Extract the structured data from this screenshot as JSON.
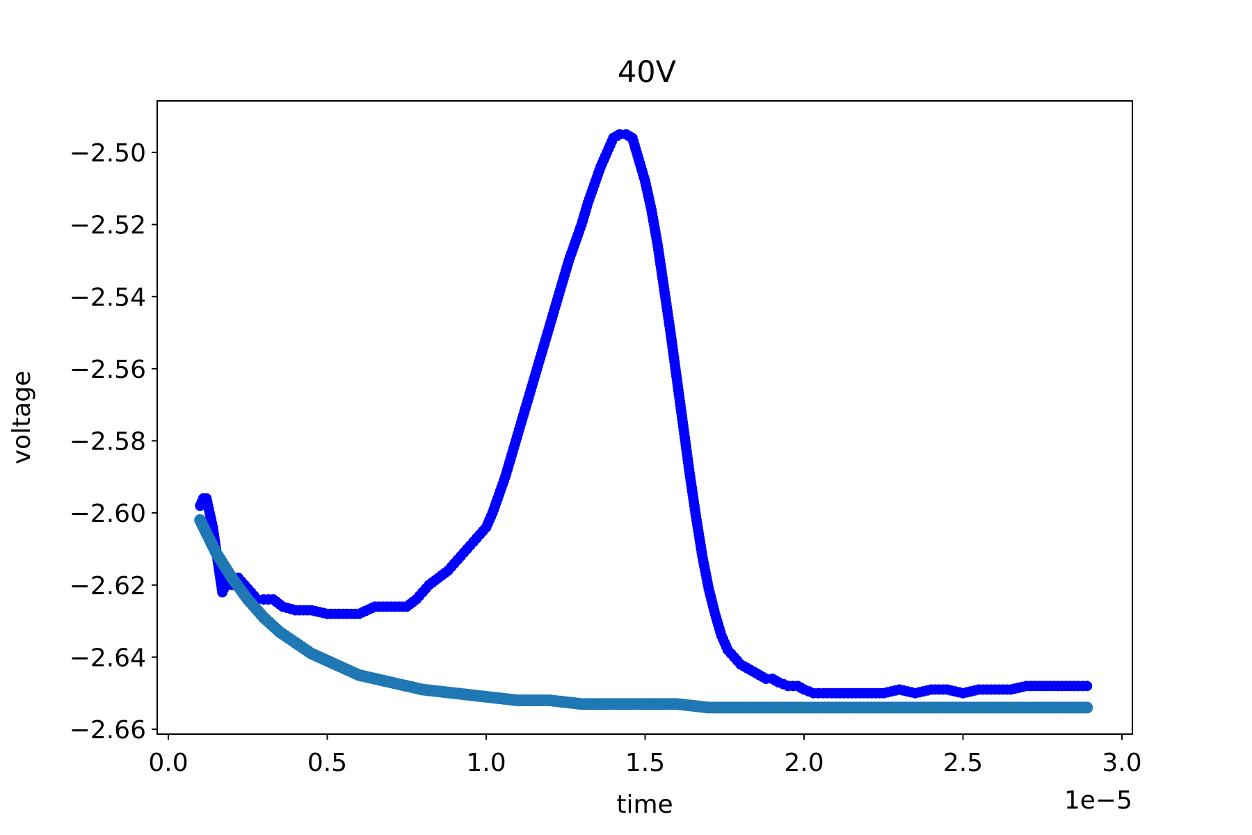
{
  "chart_data": {
    "type": "scatter",
    "title": "40V",
    "xlabel": "time",
    "ylabel": "voltage",
    "x_offset_label": "1e−5",
    "xlim": [
      -5e-08,
      3.05e-06
    ],
    "ylim": [
      -2.6618,
      -2.4865
    ],
    "xticks": [
      0.0,
      0.5,
      1.0,
      1.5,
      2.0,
      2.5,
      3.0
    ],
    "xtick_labels": [
      "0.0",
      "0.5",
      "1.0",
      "1.5",
      "2.0",
      "2.5",
      "3.0"
    ],
    "yticks": [
      -2.66,
      -2.64,
      -2.62,
      -2.6,
      -2.58,
      -2.56,
      -2.54,
      -2.52,
      -2.5
    ],
    "ytick_labels": [
      "−2.66",
      "−2.64",
      "−2.62",
      "−2.60",
      "−2.58",
      "−2.56",
      "−2.54",
      "−2.52",
      "−2.50"
    ],
    "grid": false,
    "series": [
      {
        "name": "",
        "color": "#0000ff",
        "x": [
          0.1,
          0.11,
          0.12,
          0.13,
          0.14,
          0.15,
          0.16,
          0.17,
          0.18,
          0.19,
          0.2,
          0.22,
          0.24,
          0.26,
          0.28,
          0.3,
          0.33,
          0.36,
          0.4,
          0.45,
          0.5,
          0.55,
          0.6,
          0.65,
          0.7,
          0.75,
          0.78,
          0.8,
          0.82,
          0.85,
          0.88,
          0.9,
          0.92,
          0.94,
          0.96,
          0.98,
          1.0,
          1.02,
          1.04,
          1.06,
          1.08,
          1.1,
          1.12,
          1.14,
          1.16,
          1.18,
          1.2,
          1.22,
          1.24,
          1.26,
          1.28,
          1.3,
          1.32,
          1.34,
          1.36,
          1.38,
          1.4,
          1.42,
          1.44,
          1.46,
          1.48,
          1.5,
          1.52,
          1.54,
          1.56,
          1.58,
          1.6,
          1.62,
          1.64,
          1.66,
          1.68,
          1.7,
          1.72,
          1.74,
          1.76,
          1.78,
          1.8,
          1.82,
          1.84,
          1.86,
          1.88,
          1.9,
          1.92,
          1.95,
          1.98,
          2.0,
          2.03,
          2.06,
          2.1,
          2.15,
          2.2,
          2.25,
          2.3,
          2.35,
          2.4,
          2.45,
          2.5,
          2.55,
          2.6,
          2.65,
          2.7,
          2.75,
          2.8,
          2.85,
          2.89
        ],
        "y": [
          -2.598,
          -2.596,
          -2.596,
          -2.6,
          -2.604,
          -2.61,
          -2.616,
          -2.622,
          -2.62,
          -2.618,
          -2.62,
          -2.618,
          -2.62,
          -2.622,
          -2.624,
          -2.624,
          -2.624,
          -2.626,
          -2.627,
          -2.627,
          -2.628,
          -2.628,
          -2.628,
          -2.626,
          -2.626,
          -2.626,
          -2.624,
          -2.622,
          -2.62,
          -2.618,
          -2.616,
          -2.614,
          -2.612,
          -2.61,
          -2.608,
          -2.606,
          -2.604,
          -2.6,
          -2.595,
          -2.59,
          -2.584,
          -2.578,
          -2.572,
          -2.566,
          -2.56,
          -2.554,
          -2.548,
          -2.542,
          -2.536,
          -2.53,
          -2.525,
          -2.52,
          -2.514,
          -2.509,
          -2.504,
          -2.5,
          -2.496,
          -2.495,
          -2.495,
          -2.496,
          -2.502,
          -2.508,
          -2.516,
          -2.526,
          -2.538,
          -2.55,
          -2.563,
          -2.576,
          -2.589,
          -2.601,
          -2.612,
          -2.621,
          -2.628,
          -2.634,
          -2.638,
          -2.64,
          -2.642,
          -2.643,
          -2.644,
          -2.645,
          -2.646,
          -2.646,
          -2.647,
          -2.648,
          -2.648,
          -2.649,
          -2.65,
          -2.65,
          -2.65,
          -2.65,
          -2.65,
          -2.65,
          -2.649,
          -2.65,
          -2.649,
          -2.649,
          -2.65,
          -2.649,
          -2.649,
          -2.649,
          -2.648,
          -2.648,
          -2.648,
          -2.648,
          -2.648
        ]
      },
      {
        "name": "",
        "color": "#1f77b4",
        "x": [
          0.1,
          0.15,
          0.2,
          0.25,
          0.3,
          0.35,
          0.4,
          0.45,
          0.5,
          0.55,
          0.6,
          0.7,
          0.8,
          0.9,
          1.0,
          1.1,
          1.2,
          1.3,
          1.4,
          1.5,
          1.6,
          1.7,
          1.8,
          1.9,
          2.0,
          2.2,
          2.4,
          2.6,
          2.8,
          2.89
        ],
        "y": [
          -2.602,
          -2.611,
          -2.618,
          -2.624,
          -2.629,
          -2.633,
          -2.636,
          -2.639,
          -2.641,
          -2.643,
          -2.645,
          -2.647,
          -2.649,
          -2.65,
          -2.651,
          -2.652,
          -2.652,
          -2.653,
          -2.653,
          -2.653,
          -2.653,
          -2.654,
          -2.654,
          -2.654,
          -2.654,
          -2.654,
          -2.654,
          -2.654,
          -2.654,
          -2.654
        ]
      }
    ]
  }
}
